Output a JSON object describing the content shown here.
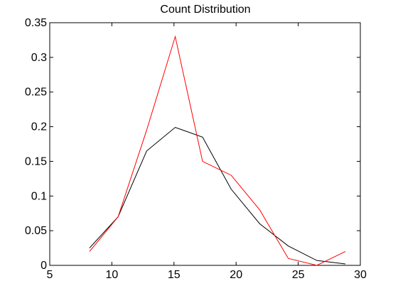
{
  "chart_data": {
    "type": "line",
    "title": "Count Distribution",
    "xlabel": "",
    "ylabel": "",
    "xlim": [
      5,
      30
    ],
    "ylim": [
      0,
      0.35
    ],
    "x_ticks": [
      5,
      10,
      15,
      20,
      25,
      30
    ],
    "y_ticks": [
      0,
      0.05,
      0.1,
      0.15,
      0.2,
      0.25,
      0.3,
      0.35
    ],
    "x_tick_labels": [
      "5",
      "10",
      "15",
      "20",
      "25",
      "30"
    ],
    "y_tick_labels": [
      "0",
      "0.05",
      "0.1",
      "0.15",
      "0.2",
      "0.25",
      "0.3",
      "0.35"
    ],
    "grid": false,
    "legend": "none",
    "series": [
      {
        "color": "#000000",
        "x": [
          8.2,
          10.5,
          12.8,
          15.1,
          17.3,
          19.6,
          21.9,
          24.2,
          26.5,
          28.8
        ],
        "y": [
          0.025,
          0.07,
          0.165,
          0.199,
          0.185,
          0.11,
          0.06,
          0.028,
          0.007,
          0.002
        ]
      },
      {
        "color": "#ff0000",
        "x": [
          8.2,
          10.5,
          12.8,
          15.1,
          17.3,
          19.6,
          21.9,
          24.2,
          26.5,
          28.8
        ],
        "y": [
          0.02,
          0.07,
          0.195,
          0.33,
          0.15,
          0.13,
          0.08,
          0.01,
          0.0,
          0.02
        ]
      }
    ]
  }
}
